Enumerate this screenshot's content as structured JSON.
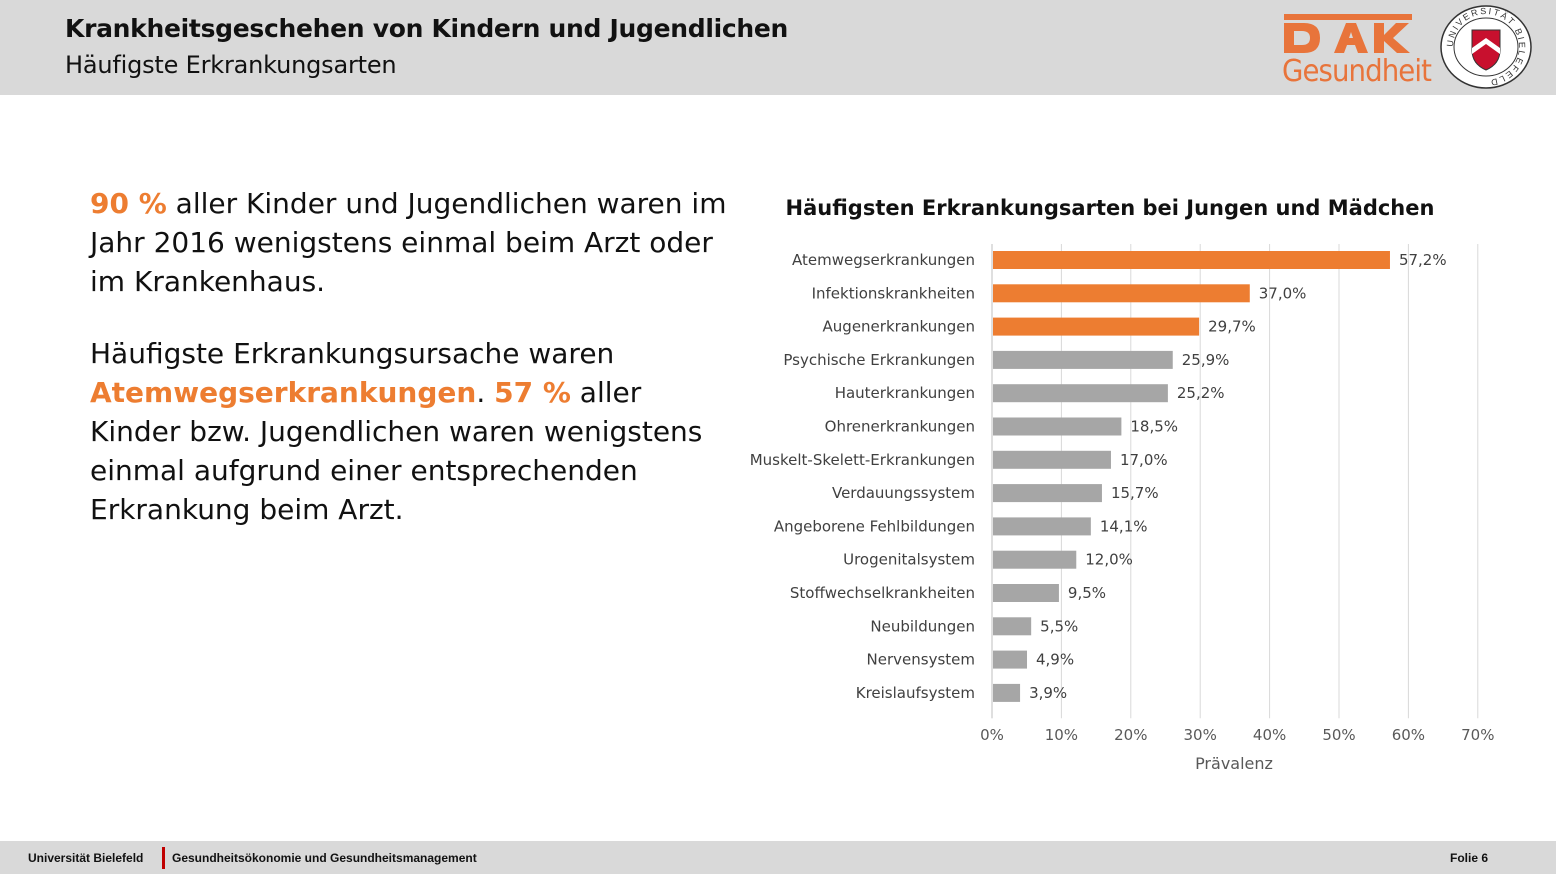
{
  "header": {
    "title": "Krankheitsgeschehen von Kindern und Jugendlichen",
    "subtitle": "Häufigste Erkrankungsarten",
    "logo_text": "DAK",
    "logo_word": "Gesundheit",
    "seal_text": "UNIVERSITÄT BIELEFELD"
  },
  "text": {
    "p1_highlight": "90 %",
    "p1_rest": " aller Kinder und Jugendlichen waren im Jahr 2016 wenigstens einmal beim Arzt oder im Krankenhaus.",
    "p2_start": "Häufigste Erkrankungsursache waren ",
    "p2_highlight1": "Atemwegserkrankungen",
    "p2_mid": ". ",
    "p2_highlight2": "57 %",
    "p2_end": " aller Kinder bzw. Jugendlichen waren wenigstens einmal aufgrund einer entsprechenden Erkrankung beim Arzt."
  },
  "colors": {
    "accent": "#ed7d31",
    "bar_highlight": "#ed7d31",
    "bar_default": "#a6a6a6"
  },
  "chart_data": {
    "type": "bar",
    "orientation": "horizontal",
    "title": "Häufigsten Erkrankungsarten bei Jungen und Mädchen",
    "xlabel": "Prävalenz",
    "ylabel": "",
    "xlim": [
      0,
      70
    ],
    "xticks": [
      "0%",
      "10%",
      "20%",
      "30%",
      "40%",
      "50%",
      "60%",
      "70%"
    ],
    "grid": true,
    "categories": [
      "Atemwegserkrankungen",
      "Infektionskrankheiten",
      "Augenerkrankungen",
      "Psychische Erkrankungen",
      "Hauterkrankungen",
      "Ohrenerkrankungen",
      "Muskelt-Skelett-Erkrankungen",
      "Verdauungssystem",
      "Angeborene Fehlbildungen",
      "Urogenitalsystem",
      "Stoffwechselkrankheiten",
      "Neubildungen",
      "Nervensystem",
      "Kreislaufsystem"
    ],
    "values": [
      57.2,
      37.0,
      29.7,
      25.9,
      25.2,
      18.5,
      17.0,
      15.7,
      14.1,
      12.0,
      9.5,
      5.5,
      4.9,
      3.9
    ],
    "data_labels": [
      "57,2%",
      "37,0%",
      "29,7%",
      "25,9%",
      "25,2%",
      "18,5%",
      "17,0%",
      "15,7%",
      "14,1%",
      "12,0%",
      "9,5%",
      "5,5%",
      "4,9%",
      "3,9%"
    ],
    "highlighted": [
      true,
      true,
      true,
      false,
      false,
      false,
      false,
      false,
      false,
      false,
      false,
      false,
      false,
      false
    ]
  },
  "footer": {
    "university": "Universität Bielefeld",
    "department": "Gesundheitsökonomie und Gesundheitsmanagement",
    "slide": "Folie 6"
  }
}
